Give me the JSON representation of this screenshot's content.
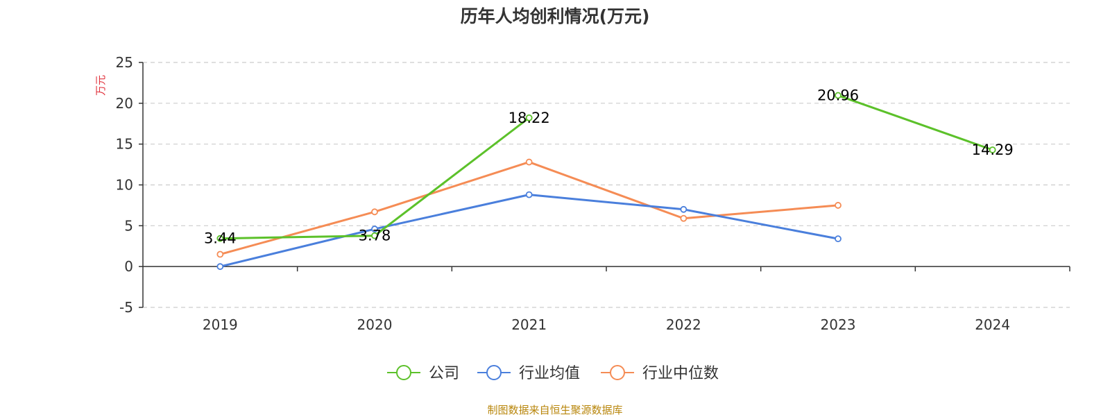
{
  "title": "历年人均创利情况(万元)",
  "source": "制图数据来自恒生聚源数据库",
  "chart_data": {
    "type": "line",
    "title": "历年人均创利情况(万元)",
    "ylabel": "万元",
    "ylim": [
      -5,
      25
    ],
    "yticks": [
      -5,
      0,
      5,
      10,
      15,
      20,
      25
    ],
    "categories": [
      "2019",
      "2020",
      "2021",
      "2022",
      "2023",
      "2024"
    ],
    "grid": true,
    "legend_position": "bottom",
    "series": [
      {
        "name": "公司",
        "color": "#5cc12a",
        "values": [
          3.44,
          3.78,
          18.22,
          null,
          20.96,
          14.29
        ],
        "labels": [
          "3.44",
          "3.78",
          "18.22",
          "",
          "20.96",
          "14.29"
        ]
      },
      {
        "name": "行业均值",
        "color": "#4a7fdc",
        "values": [
          0.0,
          4.6,
          8.8,
          7.0,
          3.4,
          null
        ]
      },
      {
        "name": "行业中位数",
        "color": "#f58c55",
        "values": [
          1.5,
          6.7,
          12.8,
          5.9,
          7.5,
          null
        ]
      }
    ],
    "ylabel_color": "#e0333d"
  }
}
